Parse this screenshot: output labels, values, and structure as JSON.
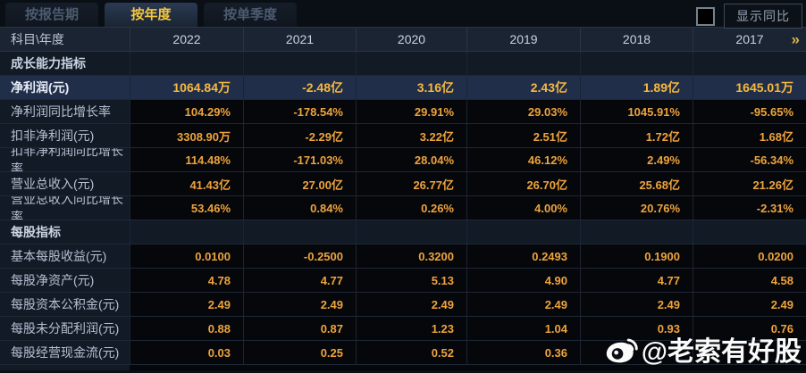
{
  "tabs": [
    {
      "label": "按报告期",
      "active": false
    },
    {
      "label": "按年度",
      "active": true
    },
    {
      "label": "按单季度",
      "active": false
    }
  ],
  "controls": {
    "show_yoy_label": "显示同比",
    "checkbox_checked": false
  },
  "table": {
    "corner_label": "科目\\年度",
    "years": [
      "2022",
      "2021",
      "2020",
      "2019",
      "2018",
      "2017"
    ],
    "more_icon": "»",
    "rows": [
      {
        "type": "section",
        "label": "成长能力指标",
        "values": [
          "",
          "",
          "",
          "",
          "",
          ""
        ]
      },
      {
        "type": "data",
        "highlight": true,
        "label": "净利润(元)",
        "values": [
          "1064.84万",
          "-2.48亿",
          "3.16亿",
          "2.43亿",
          "1.89亿",
          "1645.01万"
        ]
      },
      {
        "type": "data",
        "label": "净利润同比增长率",
        "values": [
          "104.29%",
          "-178.54%",
          "29.91%",
          "29.03%",
          "1045.91%",
          "-95.65%"
        ]
      },
      {
        "type": "data",
        "label": "扣非净利润(元)",
        "values": [
          "3308.90万",
          "-2.29亿",
          "3.22亿",
          "2.51亿",
          "1.72亿",
          "1.68亿"
        ]
      },
      {
        "type": "data",
        "label": "扣非净利润同比增长率",
        "values": [
          "114.48%",
          "-171.03%",
          "28.04%",
          "46.12%",
          "2.49%",
          "-56.34%"
        ]
      },
      {
        "type": "data",
        "label": "营业总收入(元)",
        "values": [
          "41.43亿",
          "27.00亿",
          "26.77亿",
          "26.70亿",
          "25.68亿",
          "21.26亿"
        ]
      },
      {
        "type": "data",
        "label": "营业总收入同比增长率",
        "values": [
          "53.46%",
          "0.84%",
          "0.26%",
          "4.00%",
          "20.76%",
          "-2.31%"
        ]
      },
      {
        "type": "section",
        "label": "每股指标",
        "values": [
          "",
          "",
          "",
          "",
          "",
          ""
        ]
      },
      {
        "type": "data",
        "label": "基本每股收益(元)",
        "values": [
          "0.0100",
          "-0.2500",
          "0.3200",
          "0.2493",
          "0.1900",
          "0.0200"
        ]
      },
      {
        "type": "data",
        "label": "每股净资产(元)",
        "values": [
          "4.78",
          "4.77",
          "5.13",
          "4.90",
          "4.77",
          "4.58"
        ]
      },
      {
        "type": "data",
        "label": "每股资本公积金(元)",
        "values": [
          "2.49",
          "2.49",
          "2.49",
          "2.49",
          "2.49",
          "2.49"
        ]
      },
      {
        "type": "data",
        "label": "每股未分配利润(元)",
        "values": [
          "0.88",
          "0.87",
          "1.23",
          "1.04",
          "0.93",
          "0.76"
        ]
      },
      {
        "type": "data",
        "label": "每股经营现金流(元)",
        "values": [
          "0.03",
          "0.25",
          "0.52",
          "0.36",
          "",
          ""
        ]
      }
    ]
  },
  "watermark": {
    "icon": "weibo-logo",
    "text": "@老索有好股"
  },
  "colors": {
    "value_gold": "#efa33c",
    "highlight_value_gold": "#f7b93f",
    "highlight_row_bg": "#202e4a",
    "tab_active_text": "#f4c63f",
    "label_column_bg": "#121a26",
    "value_cell_bg": "#05070b",
    "header_row_bg": "#1a2433",
    "watermark_text": "#fbfbfb"
  }
}
